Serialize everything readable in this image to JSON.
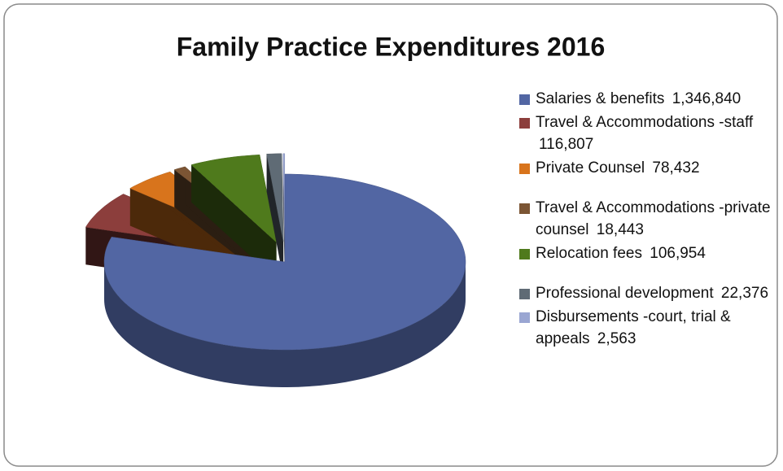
{
  "chart_data": {
    "type": "pie",
    "title": "Family Practice Expenditures 2016",
    "categories": [
      "Salaries & benefits",
      "Travel & Accommodations -staff",
      "Private Counsel",
      "Travel & Accommodations -private counsel",
      "Relocation fees",
      "Professional development",
      "Disbursements -court, trial & appeals"
    ],
    "values": [
      1346840,
      116807,
      78432,
      18443,
      106954,
      22376,
      2563
    ],
    "value_labels": [
      "1,346,840",
      "116,807",
      "78,432",
      "18,443",
      "106,954",
      "22,376",
      "2,563"
    ],
    "colors": [
      "#5266a3",
      "#8c3e3c",
      "#d8741c",
      "#7b5534",
      "#4f7a1c",
      "#5f6b75",
      "#9aa6d2"
    ],
    "legend": "right"
  }
}
